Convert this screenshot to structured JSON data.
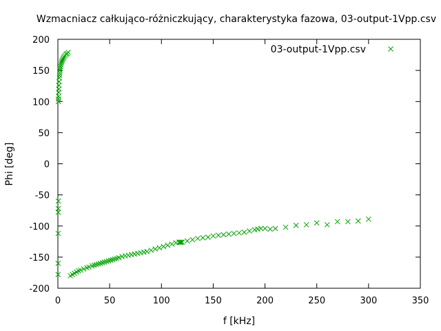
{
  "chart_data": {
    "type": "scatter",
    "title": "Wzmacniacz całkująco-różniczkujący, charakterystyka fazowa, 03-output-1Vpp.csv",
    "xlabel": "f [kHz]",
    "ylabel": "Phi [deg]",
    "xlim": [
      0,
      350
    ],
    "ylim": [
      -200,
      200
    ],
    "xticks": [
      "0",
      "50",
      "100",
      "150",
      "200",
      "250",
      "300",
      "350"
    ],
    "yticks": [
      "-200",
      "-150",
      "-100",
      "-50",
      "0",
      "50",
      "100",
      "150",
      "200"
    ],
    "grid": false,
    "legend_position": "top-right",
    "series": [
      {
        "name": "03-output-1Vpp.csv",
        "color": "#00a000",
        "marker": "x",
        "points": [
          [
            0.2,
            -178
          ],
          [
            0.25,
            -160
          ],
          [
            0.3,
            -112
          ],
          [
            0.35,
            -78
          ],
          [
            0.4,
            -72
          ],
          [
            0.45,
            -60
          ],
          [
            0.5,
            100
          ],
          [
            0.6,
            104
          ],
          [
            0.7,
            108
          ],
          [
            0.8,
            115
          ],
          [
            0.9,
            120
          ],
          [
            1.0,
            126
          ],
          [
            1.2,
            132
          ],
          [
            1.4,
            138
          ],
          [
            1.6,
            142
          ],
          [
            1.8,
            146
          ],
          [
            2.0,
            150
          ],
          [
            2.3,
            153
          ],
          [
            2.6,
            156
          ],
          [
            3.0,
            159
          ],
          [
            3.4,
            162
          ],
          [
            3.8,
            164
          ],
          [
            4.2,
            166
          ],
          [
            4.8,
            168
          ],
          [
            5.4,
            170
          ],
          [
            6.0,
            172
          ],
          [
            7.0,
            174
          ],
          [
            8.0,
            176
          ],
          [
            9.0,
            177
          ],
          [
            10.0,
            179
          ],
          [
            12,
            -180
          ],
          [
            14,
            -178
          ],
          [
            16,
            -176
          ],
          [
            18,
            -174
          ],
          [
            20,
            -172
          ],
          [
            22,
            -171
          ],
          [
            25,
            -169
          ],
          [
            28,
            -167
          ],
          [
            30,
            -166
          ],
          [
            33,
            -164
          ],
          [
            35,
            -163
          ],
          [
            37,
            -162
          ],
          [
            39,
            -161
          ],
          [
            41,
            -160
          ],
          [
            43,
            -159
          ],
          [
            45,
            -158
          ],
          [
            47,
            -157
          ],
          [
            49,
            -156
          ],
          [
            51,
            -155
          ],
          [
            53,
            -154
          ],
          [
            55,
            -153
          ],
          [
            57,
            -152
          ],
          [
            59,
            -151
          ],
          [
            62,
            -149
          ],
          [
            65,
            -148
          ],
          [
            68,
            -147
          ],
          [
            71,
            -146
          ],
          [
            74,
            -145
          ],
          [
            77,
            -144
          ],
          [
            80,
            -143
          ],
          [
            83,
            -142
          ],
          [
            86,
            -141
          ],
          [
            90,
            -139
          ],
          [
            94,
            -137
          ],
          [
            98,
            -135
          ],
          [
            102,
            -133
          ],
          [
            106,
            -131
          ],
          [
            110,
            -129
          ],
          [
            114,
            -127
          ],
          [
            117,
            -126
          ],
          [
            118,
            -126
          ],
          [
            119,
            -126
          ],
          [
            120,
            -126
          ],
          [
            125,
            -124
          ],
          [
            130,
            -122
          ],
          [
            135,
            -120
          ],
          [
            140,
            -119
          ],
          [
            145,
            -118
          ],
          [
            150,
            -116
          ],
          [
            155,
            -115
          ],
          [
            160,
            -114
          ],
          [
            165,
            -113
          ],
          [
            170,
            -112
          ],
          [
            175,
            -111
          ],
          [
            180,
            -110
          ],
          [
            185,
            -108
          ],
          [
            190,
            -106
          ],
          [
            193,
            -105
          ],
          [
            196,
            -104
          ],
          [
            200,
            -104
          ],
          [
            205,
            -105
          ],
          [
            210,
            -104
          ],
          [
            220,
            -102
          ],
          [
            230,
            -99
          ],
          [
            240,
            -98
          ],
          [
            250,
            -95
          ],
          [
            260,
            -98
          ],
          [
            270,
            -93
          ],
          [
            280,
            -93
          ],
          [
            290,
            -92
          ],
          [
            300,
            -89
          ]
        ]
      }
    ]
  }
}
